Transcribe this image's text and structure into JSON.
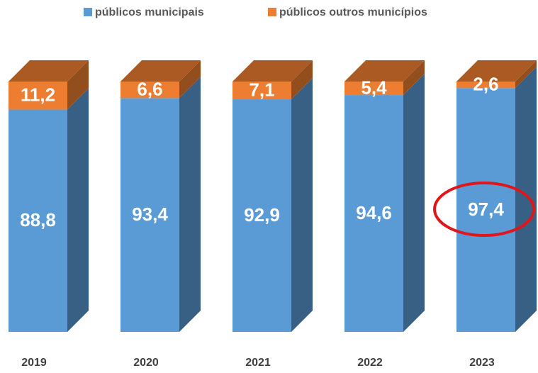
{
  "chart_data": {
    "type": "bar3d_stacked",
    "categories": [
      "2019",
      "2020",
      "2021",
      "2022",
      "2023"
    ],
    "series": [
      {
        "name": "públicos municipais",
        "color": "#5b9bd5",
        "values": [
          88.8,
          93.4,
          92.9,
          94.6,
          97.4
        ],
        "value_labels": [
          "88,8",
          "93,4",
          "92,9",
          "94,6",
          "97,4"
        ]
      },
      {
        "name": "públicos outros municípios",
        "color": "#ed7d31",
        "values": [
          11.2,
          6.6,
          7.1,
          5.4,
          2.6
        ],
        "value_labels": [
          "11,2",
          "6,6",
          "7,1",
          "5,4",
          "2,6"
        ]
      }
    ],
    "legend": "top"
  }
}
